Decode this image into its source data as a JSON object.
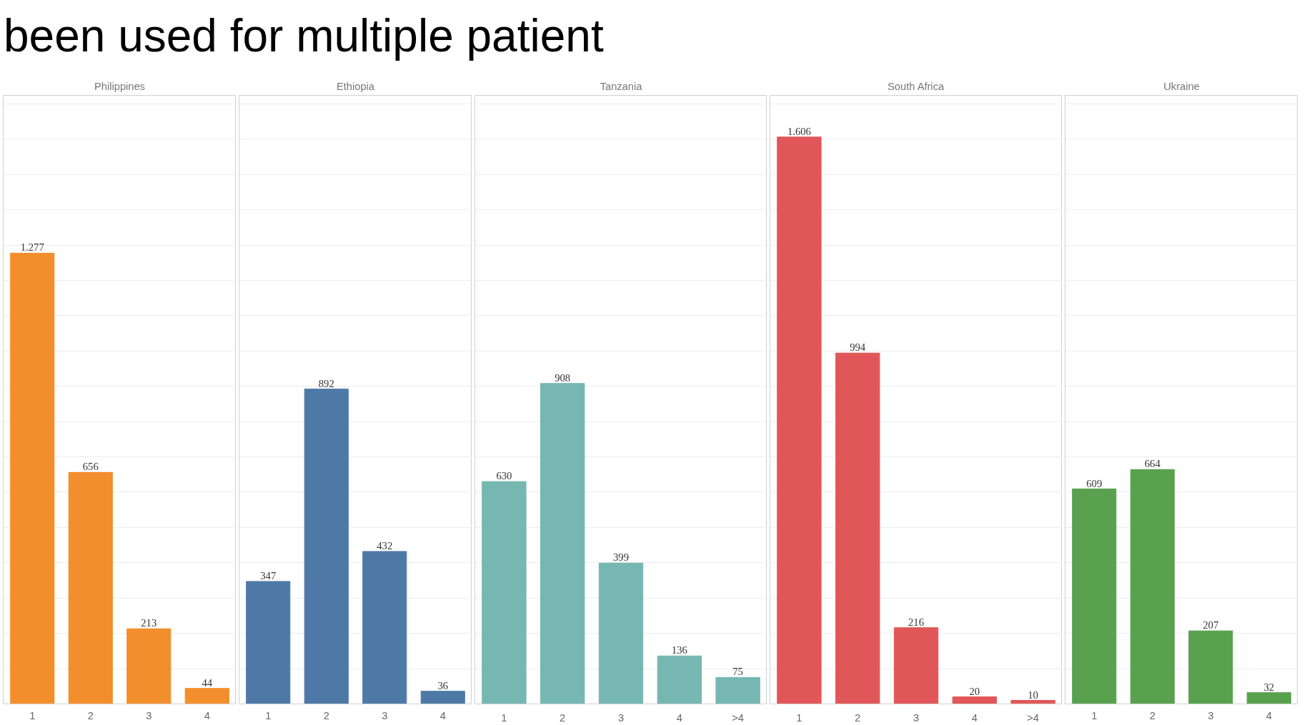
{
  "chart_data": [
    {
      "type": "bar",
      "title": "Philippines",
      "annotations": [
        "been used for multiple patient"
      ],
      "categories": [
        "1",
        "2",
        "3",
        "4"
      ],
      "values": [
        1277,
        656,
        213,
        44
      ],
      "value_labels": [
        "1.277",
        "656",
        "213",
        "44"
      ],
      "color": "#f28e2b",
      "ylim": [
        0,
        1724
      ],
      "yticks": [
        {
          "value": 0,
          "label": null
        },
        {
          "value": 100,
          "label": null
        },
        {
          "value": 200,
          "label": null
        },
        {
          "value": 300,
          "label": null
        },
        {
          "value": 400,
          "label": null
        },
        {
          "value": 500,
          "label": null
        },
        {
          "value": 600,
          "label": null
        },
        {
          "value": 700,
          "label": null
        },
        {
          "value": 800,
          "label": null
        },
        {
          "value": 900,
          "label": null
        },
        {
          "value": 1000,
          "label": null
        },
        {
          "value": 1100,
          "label": null
        },
        {
          "value": 1200,
          "label": null
        },
        {
          "value": 1300,
          "label": null
        },
        {
          "value": 1400,
          "label": null
        },
        {
          "value": 1500,
          "label": null
        },
        {
          "value": 1600,
          "label": null
        },
        {
          "value": 1700,
          "label": null
        }
      ],
      "grid": "y",
      "tick_labels": "x"
    },
    {
      "type": "bar",
      "title": "Ethiopia",
      "categories": [
        "1",
        "2",
        "3",
        "4"
      ],
      "values": [
        347,
        892,
        432,
        36
      ],
      "value_labels": [
        "347",
        "892",
        "432",
        "36"
      ],
      "color": "#4e79a7",
      "ylim": [
        0,
        1724
      ],
      "yticks": [
        {
          "value": 0,
          "label": null
        },
        {
          "value": 100,
          "label": null
        },
        {
          "value": 200,
          "label": null
        },
        {
          "value": 300,
          "label": null
        },
        {
          "value": 400,
          "label": null
        },
        {
          "value": 500,
          "label": null
        },
        {
          "value": 600,
          "label": null
        },
        {
          "value": 700,
          "label": null
        },
        {
          "value": 800,
          "label": null
        },
        {
          "value": 900,
          "label": null
        },
        {
          "value": 1000,
          "label": null
        },
        {
          "value": 1100,
          "label": null
        },
        {
          "value": 1200,
          "label": null
        },
        {
          "value": 1300,
          "label": null
        },
        {
          "value": 1400,
          "label": null
        },
        {
          "value": 1500,
          "label": null
        },
        {
          "value": 1600,
          "label": null
        },
        {
          "value": 1700,
          "label": null
        }
      ],
      "grid": "y",
      "tick_labels": "x"
    },
    {
      "type": "bar",
      "title": "Tanzania",
      "categories": [
        "1",
        "2",
        "3",
        "4",
        ">4"
      ],
      "values": [
        630,
        908,
        399,
        136,
        75
      ],
      "value_labels": [
        "630",
        "908",
        "399",
        "136",
        "75"
      ],
      "color": "#76b7b2",
      "ylim": [
        0,
        1724
      ],
      "yticks": [
        {
          "value": 0,
          "label": null
        },
        {
          "value": 100,
          "label": null
        },
        {
          "value": 200,
          "label": null
        },
        {
          "value": 300,
          "label": null
        },
        {
          "value": 400,
          "label": null
        },
        {
          "value": 500,
          "label": null
        },
        {
          "value": 600,
          "label": null
        },
        {
          "value": 700,
          "label": null
        },
        {
          "value": 800,
          "label": null
        },
        {
          "value": 900,
          "label": null
        },
        {
          "value": 1000,
          "label": null
        },
        {
          "value": 1100,
          "label": null
        },
        {
          "value": 1200,
          "label": null
        },
        {
          "value": 1300,
          "label": null
        },
        {
          "value": 1400,
          "label": null
        },
        {
          "value": 1500,
          "label": null
        },
        {
          "value": 1600,
          "label": null
        },
        {
          "value": 1700,
          "label": null
        }
      ],
      "grid": "y",
      "tick_labels": "x"
    },
    {
      "type": "bar",
      "title": "South Africa",
      "categories": [
        "1",
        "2",
        "3",
        "4",
        ">4"
      ],
      "values": [
        1606,
        994,
        216,
        20,
        10
      ],
      "value_labels": [
        "1.606",
        "994",
        "216",
        "20",
        "10"
      ],
      "color": "#e15759",
      "ylim": [
        0,
        1724
      ],
      "yticks": [
        {
          "value": 0,
          "label": null
        },
        {
          "value": 100,
          "label": null
        },
        {
          "value": 200,
          "label": null
        },
        {
          "value": 300,
          "label": null
        },
        {
          "value": 400,
          "label": null
        },
        {
          "value": 500,
          "label": null
        },
        {
          "value": 600,
          "label": null
        },
        {
          "value": 700,
          "label": null
        },
        {
          "value": 800,
          "label": null
        },
        {
          "value": 900,
          "label": null
        },
        {
          "value": 1000,
          "label": null
        },
        {
          "value": 1100,
          "label": null
        },
        {
          "value": 1200,
          "label": null
        },
        {
          "value": 1300,
          "label": null
        },
        {
          "value": 1400,
          "label": null
        },
        {
          "value": 1500,
          "label": null
        },
        {
          "value": 1600,
          "label": null
        },
        {
          "value": 1700,
          "label": null
        }
      ],
      "grid": "y",
      "tick_labels": "x"
    },
    {
      "type": "bar",
      "title": "Ukraine",
      "categories": [
        "1",
        "2",
        "3",
        "4"
      ],
      "values": [
        609,
        664,
        207,
        32
      ],
      "value_labels": [
        "609",
        "664",
        "207",
        "32"
      ],
      "color": "#59a14f",
      "ylim": [
        0,
        1724
      ],
      "yticks": [
        {
          "value": 0,
          "label": null
        },
        {
          "value": 100,
          "label": null
        },
        {
          "value": 200,
          "label": null
        },
        {
          "value": 300,
          "label": null
        },
        {
          "value": 400,
          "label": null
        },
        {
          "value": 500,
          "label": null
        },
        {
          "value": 600,
          "label": null
        },
        {
          "value": 700,
          "label": null
        },
        {
          "value": 800,
          "label": null
        },
        {
          "value": 900,
          "label": null
        },
        {
          "value": 1000,
          "label": null
        },
        {
          "value": 1100,
          "label": null
        },
        {
          "value": 1200,
          "label": null
        },
        {
          "value": 1300,
          "label": null
        },
        {
          "value": 1400,
          "label": null
        },
        {
          "value": 1500,
          "label": null
        },
        {
          "value": 1600,
          "label": null
        },
        {
          "value": 1700,
          "label": null
        }
      ],
      "grid": "y",
      "tick_labels": "x"
    }
  ]
}
